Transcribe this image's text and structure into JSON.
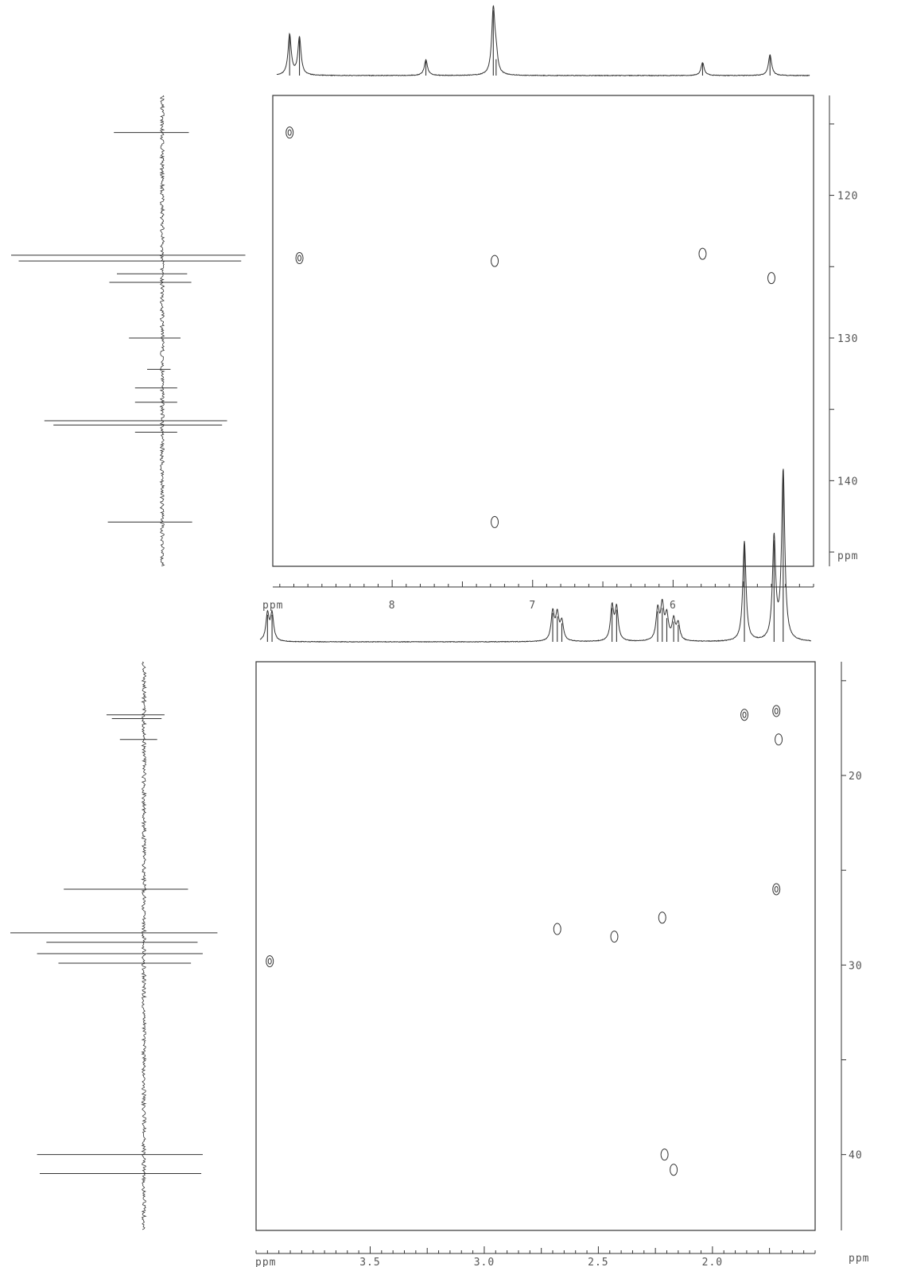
{
  "chart_data": [
    {
      "type": "heatmap",
      "subtype": "2D NMR correlation spectrum (aromatic region)",
      "title": "",
      "xlabel": "ppm",
      "ylabel": "ppm",
      "x_axis": {
        "reversed": true,
        "range": [
          8.85,
          5.0
        ],
        "tick_labels": [
          "8",
          "7",
          "6"
        ],
        "tick_values": [
          8,
          7,
          6
        ]
      },
      "y_axis": {
        "reversed": true,
        "range": [
          113,
          146
        ],
        "tick_labels": [
          "120",
          "130",
          "140"
        ],
        "tick_values": [
          120,
          130,
          140
        ]
      },
      "cross_peaks": [
        {
          "x": 8.73,
          "y": 115.6,
          "shape": "double"
        },
        {
          "x": 8.66,
          "y": 124.4,
          "shape": "double"
        },
        {
          "x": 7.27,
          "y": 124.6,
          "shape": "single"
        },
        {
          "x": 5.79,
          "y": 124.1,
          "shape": "single"
        },
        {
          "x": 5.3,
          "y": 125.8,
          "shape": "single"
        },
        {
          "x": 7.27,
          "y": 142.9,
          "shape": "single"
        }
      ],
      "f2_projection_peaks": [
        {
          "ppm": 8.73,
          "height": 0.62
        },
        {
          "ppm": 8.66,
          "height": 0.58
        },
        {
          "ppm": 7.76,
          "height": 0.24
        },
        {
          "ppm": 7.28,
          "height": 1.0
        },
        {
          "ppm": 7.26,
          "height": 0.25
        },
        {
          "ppm": 5.79,
          "height": 0.2
        },
        {
          "ppm": 5.31,
          "height": 0.32
        }
      ],
      "f1_projection_peaks": [
        {
          "ppm": 115.6,
          "height": 0.32
        },
        {
          "ppm": 124.2,
          "height": 1.0
        },
        {
          "ppm": 124.6,
          "height": 0.95
        },
        {
          "ppm": 125.5,
          "height": 0.3
        },
        {
          "ppm": 126.1,
          "height": 0.35
        },
        {
          "ppm": 130.0,
          "height": 0.22
        },
        {
          "ppm": 132.2,
          "height": 0.1
        },
        {
          "ppm": 133.5,
          "height": 0.18
        },
        {
          "ppm": 134.5,
          "height": 0.18
        },
        {
          "ppm": 135.8,
          "height": 0.78
        },
        {
          "ppm": 136.1,
          "height": 0.72
        },
        {
          "ppm": 136.6,
          "height": 0.18
        },
        {
          "ppm": 142.9,
          "height": 0.36
        }
      ]
    },
    {
      "type": "heatmap",
      "subtype": "2D NMR correlation spectrum (aliphatic region)",
      "title": "",
      "xlabel": "ppm",
      "ylabel": "ppm",
      "x_axis": {
        "reversed": true,
        "range": [
          4.0,
          1.55
        ],
        "tick_labels": [
          "3.5",
          "3.0",
          "2.5",
          "2.0"
        ],
        "tick_values": [
          3.5,
          3.0,
          2.5,
          2.0
        ]
      },
      "y_axis": {
        "reversed": true,
        "range": [
          14,
          44
        ],
        "tick_labels": [
          "20",
          "30",
          "40"
        ],
        "tick_values": [
          20,
          30,
          40
        ]
      },
      "cross_peaks": [
        {
          "x": 3.94,
          "y": 29.8,
          "shape": "double"
        },
        {
          "x": 2.68,
          "y": 28.1,
          "shape": "single"
        },
        {
          "x": 2.43,
          "y": 28.5,
          "shape": "single"
        },
        {
          "x": 2.22,
          "y": 27.5,
          "shape": "single"
        },
        {
          "x": 2.21,
          "y": 40.0,
          "shape": "single"
        },
        {
          "x": 2.17,
          "y": 40.8,
          "shape": "single"
        },
        {
          "x": 1.86,
          "y": 16.8,
          "shape": "double"
        },
        {
          "x": 1.72,
          "y": 16.6,
          "shape": "double"
        },
        {
          "x": 1.71,
          "y": 18.1,
          "shape": "single"
        },
        {
          "x": 1.72,
          "y": 26.0,
          "shape": "double"
        }
      ],
      "f2_projection_peaks": [
        {
          "ppm": 3.95,
          "height": 0.16
        },
        {
          "ppm": 3.93,
          "height": 0.16
        },
        {
          "ppm": 2.7,
          "height": 0.17
        },
        {
          "ppm": 2.68,
          "height": 0.15
        },
        {
          "ppm": 2.66,
          "height": 0.11
        },
        {
          "ppm": 2.44,
          "height": 0.2
        },
        {
          "ppm": 2.42,
          "height": 0.19
        },
        {
          "ppm": 2.24,
          "height": 0.18
        },
        {
          "ppm": 2.22,
          "height": 0.2
        },
        {
          "ppm": 2.2,
          "height": 0.14
        },
        {
          "ppm": 2.17,
          "height": 0.12
        },
        {
          "ppm": 2.15,
          "height": 0.1
        },
        {
          "ppm": 1.86,
          "height": 0.59
        },
        {
          "ppm": 1.73,
          "height": 0.6
        },
        {
          "ppm": 1.69,
          "height": 1.0
        }
      ],
      "f1_projection_peaks": [
        {
          "ppm": 16.8,
          "height": 0.28
        },
        {
          "ppm": 17.0,
          "height": 0.24
        },
        {
          "ppm": 18.1,
          "height": 0.18
        },
        {
          "ppm": 26.0,
          "height": 0.6
        },
        {
          "ppm": 28.3,
          "height": 1.0
        },
        {
          "ppm": 28.8,
          "height": 0.73
        },
        {
          "ppm": 29.4,
          "height": 0.8
        },
        {
          "ppm": 29.9,
          "height": 0.64
        },
        {
          "ppm": 40.0,
          "height": 0.8
        },
        {
          "ppm": 41.0,
          "height": 0.78
        }
      ]
    }
  ]
}
